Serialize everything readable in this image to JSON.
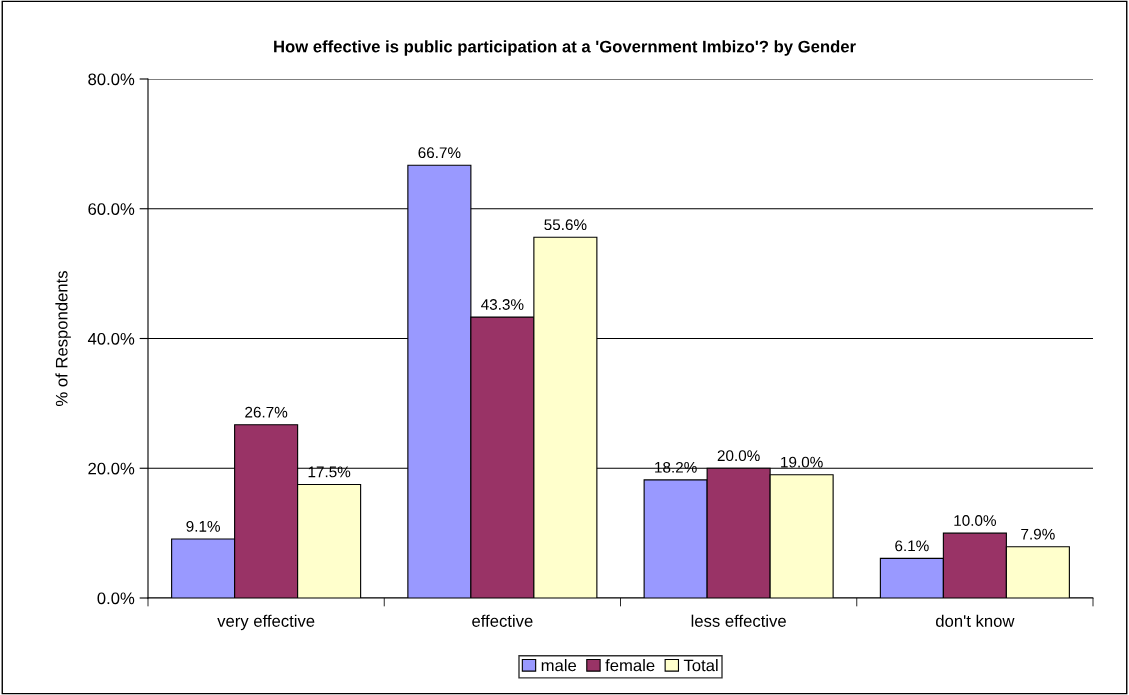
{
  "chart_data": {
    "type": "bar",
    "title": "How effective is public participation at a 'Government Imbizo'? by Gender",
    "ylabel": "% of Respondents",
    "categories": [
      "very effective",
      "effective",
      "less effective",
      "don't know"
    ],
    "series": [
      {
        "name": "male",
        "color": "#9999ff",
        "values": [
          9.1,
          66.7,
          18.2,
          6.1
        ],
        "value_labels": [
          "9.1%",
          "66.7%",
          "18.2%",
          "6.1%"
        ]
      },
      {
        "name": "female",
        "color": "#993366",
        "values": [
          26.7,
          43.3,
          20.0,
          10.0
        ],
        "value_labels": [
          "26.7%",
          "43.3%",
          "20.0%",
          "10.0%"
        ]
      },
      {
        "name": "Total",
        "color": "#ffffcc",
        "values": [
          17.5,
          55.6,
          19.0,
          7.9
        ],
        "value_labels": [
          "17.5%",
          "55.6%",
          "19.0%",
          "7.9%"
        ]
      }
    ],
    "ylim": [
      0,
      80
    ],
    "yticks": [
      {
        "value": 0,
        "label": "0.0%"
      },
      {
        "value": 20,
        "label": "20.0%"
      },
      {
        "value": 40,
        "label": "40.0%"
      },
      {
        "value": 60,
        "label": "60.0%"
      },
      {
        "value": 80,
        "label": "80.0%"
      }
    ],
    "grid": "y",
    "legend": "bottom"
  }
}
